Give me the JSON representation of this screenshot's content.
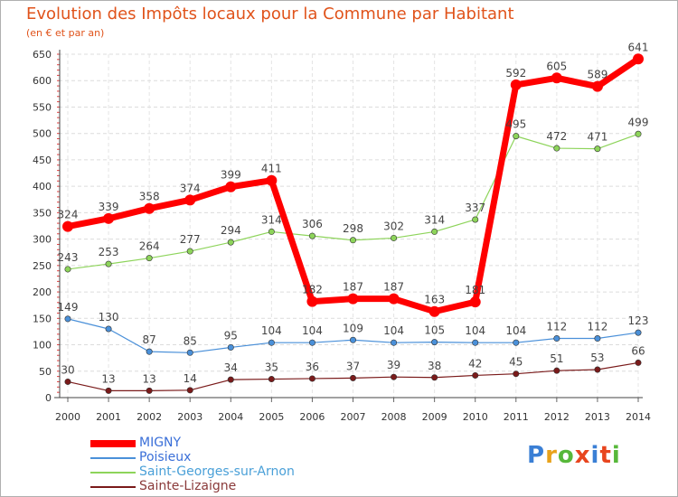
{
  "header": {
    "title": "Evolution des Impôts locaux pour la Commune par Habitant",
    "subtitle": "(en € et par an)"
  },
  "brand": {
    "logo_text": "Proxiti",
    "colors": [
      "#3a7fd5",
      "#e8a21a",
      "#57b83a",
      "#e8451e",
      "#3a7fd5",
      "#e8451e",
      "#57b83a"
    ]
  },
  "chart_data": {
    "type": "line",
    "title": "Evolution des Impôts locaux pour la Commune par Habitant",
    "subtitle": "(en € et par an)",
    "xlabel": "",
    "ylabel": "",
    "x": [
      "2000",
      "2001",
      "2002",
      "2003",
      "2004",
      "2005",
      "2006",
      "2007",
      "2008",
      "2009",
      "2010",
      "2011",
      "2012",
      "2013",
      "2014"
    ],
    "ylim": [
      0,
      650
    ],
    "yticks": [
      0,
      50,
      100,
      150,
      200,
      250,
      300,
      350,
      400,
      450,
      500,
      550,
      600,
      650
    ],
    "grid": true,
    "legend_position": "bottom-left",
    "series": [
      {
        "name": "MIGNY",
        "color": "#ff0000",
        "values": [
          324,
          339,
          358,
          374,
          399,
          411,
          182,
          187,
          187,
          163,
          181,
          592,
          605,
          589,
          641
        ],
        "labels": [
          "324",
          "339",
          "358",
          "374",
          "399",
          "411",
          "182",
          "187",
          "187",
          "163",
          "181",
          "592",
          "605",
          "589",
          "641"
        ]
      },
      {
        "name": "Poisieux",
        "color": "#4a90d9",
        "values": [
          149,
          130,
          87,
          85,
          95,
          104,
          104,
          109,
          104,
          105,
          104,
          104,
          112,
          112,
          123
        ],
        "labels": [
          "149",
          "130",
          "87",
          "85",
          "95",
          "104",
          "104",
          "109",
          "104",
          "105",
          "104",
          "104",
          "112",
          "112",
          "123"
        ]
      },
      {
        "name": "Saint-Georges-sur-Arnon",
        "color": "#8dd45a",
        "values": [
          243,
          253,
          264,
          277,
          294,
          314,
          306,
          298,
          302,
          314,
          337,
          495,
          472,
          471,
          499
        ],
        "labels": [
          "243",
          "253",
          "264",
          "277",
          "294",
          "314",
          "306",
          "298",
          "302",
          "314",
          "337",
          "495",
          "472",
          "471",
          "499"
        ]
      },
      {
        "name": "Sainte-Lizaigne",
        "color": "#7a1a1a",
        "values": [
          30,
          13,
          13,
          14,
          34,
          35,
          36,
          37,
          39,
          38,
          42,
          45,
          51,
          53,
          66
        ],
        "labels": [
          "30",
          "13",
          "13",
          "14",
          "34",
          "35",
          "36",
          "37",
          "39",
          "38",
          "42",
          "45",
          "51",
          "53",
          "66"
        ]
      }
    ]
  }
}
